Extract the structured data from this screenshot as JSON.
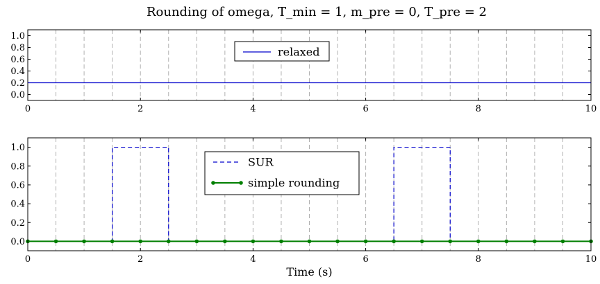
{
  "title": "Rounding of omega, T_min = 1, m_pre = 0, T_pre = 2",
  "chart_data": [
    {
      "type": "line",
      "xlim": [
        0,
        10
      ],
      "ylim": [
        -0.1,
        1.1
      ],
      "x_ticks": [
        0,
        2,
        4,
        6,
        8,
        10
      ],
      "y_ticks": [
        0.0,
        0.2,
        0.4,
        0.6,
        0.8,
        1.0
      ],
      "x_tick_labels": [
        "0",
        "2",
        "4",
        "6",
        "8",
        "10"
      ],
      "y_tick_labels": [
        "0.0",
        "0.2",
        "0.4",
        "0.6",
        "0.8",
        "1.0"
      ],
      "vgrid": [
        0.5,
        1.0,
        1.5,
        2.0,
        2.5,
        3.0,
        3.5,
        4.0,
        4.5,
        5.0,
        5.5,
        6.0,
        6.5,
        7.0,
        7.5,
        8.0,
        8.5,
        9.0,
        9.5
      ],
      "legend_position": "top-center",
      "series": [
        {
          "name": "relaxed",
          "color": "#0000cc",
          "style": "line",
          "x": [
            0,
            10
          ],
          "y": [
            0.2,
            0.2
          ]
        }
      ]
    },
    {
      "type": "line",
      "xlim": [
        0,
        10
      ],
      "ylim": [
        -0.1,
        1.1
      ],
      "xlabel": "Time (s)",
      "x_ticks": [
        0,
        2,
        4,
        6,
        8,
        10
      ],
      "y_ticks": [
        0.0,
        0.2,
        0.4,
        0.6,
        0.8,
        1.0
      ],
      "x_tick_labels": [
        "0",
        "2",
        "4",
        "6",
        "8",
        "10"
      ],
      "y_tick_labels": [
        "0.0",
        "0.2",
        "0.4",
        "0.6",
        "0.8",
        "1.0"
      ],
      "vgrid": [
        0.5,
        1.0,
        1.5,
        2.0,
        2.5,
        3.0,
        3.5,
        4.0,
        4.5,
        5.0,
        5.5,
        6.0,
        6.5,
        7.0,
        7.5,
        8.0,
        8.5,
        9.0,
        9.5
      ],
      "legend_position": "top-center",
      "series": [
        {
          "name": "SUR",
          "color": "#0000cc",
          "style": "dashed-step",
          "x": [
            0,
            1.5,
            1.5,
            2.5,
            2.5,
            6.5,
            6.5,
            7.5,
            7.5,
            10
          ],
          "y": [
            0,
            0,
            1,
            1,
            0,
            0,
            1,
            1,
            0,
            0
          ]
        },
        {
          "name": "simple rounding",
          "color": "#007f00",
          "style": "line-markers",
          "x": [
            0,
            0.5,
            1.0,
            1.5,
            2.0,
            2.5,
            3.0,
            3.5,
            4.0,
            4.5,
            5.0,
            5.5,
            6.0,
            6.5,
            7.0,
            7.5,
            8.0,
            8.5,
            9.0,
            9.5,
            10.0
          ],
          "y": [
            0,
            0,
            0,
            0,
            0,
            0,
            0,
            0,
            0,
            0,
            0,
            0,
            0,
            0,
            0,
            0,
            0,
            0,
            0,
            0,
            0
          ]
        }
      ]
    }
  ]
}
